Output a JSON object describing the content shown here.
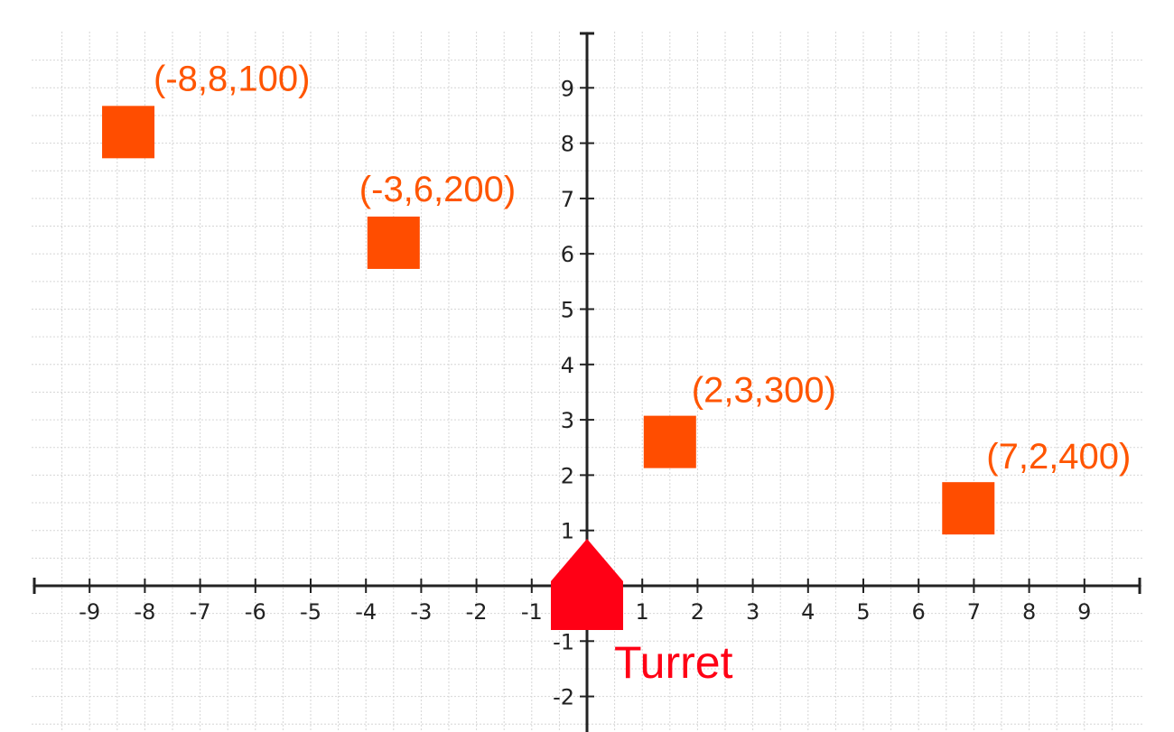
{
  "colors": {
    "target": "#ff4d00",
    "target_label": "#ff5500",
    "turret": "#ff0015",
    "grid": "#d6d6d6",
    "axis": "#222222",
    "background": "#ffffff"
  },
  "axes": {
    "x_ticks": [
      -9,
      -8,
      -7,
      -6,
      -5,
      -4,
      -3,
      -2,
      -1,
      1,
      2,
      3,
      4,
      5,
      6,
      7,
      8,
      9
    ],
    "y_ticks": [
      9,
      8,
      7,
      6,
      5,
      4,
      3,
      2,
      1,
      -1,
      -2
    ],
    "x_tick_labels": [
      "-9",
      "-8",
      "-7",
      "-6",
      "-5",
      "-4",
      "-3",
      "-2",
      "-1",
      "1",
      "2",
      "3",
      "4",
      "5",
      "6",
      "7",
      "8",
      "9"
    ],
    "y_tick_labels": [
      "9",
      "8",
      "7",
      "6",
      "5",
      "4",
      "3",
      "2",
      "1",
      "-1",
      "-2"
    ],
    "grid_step": 0.5,
    "grid": true
  },
  "targets": [
    {
      "label": "(-8,8,100)",
      "x": -8.3,
      "y": 8.2
    },
    {
      "label": "(-3,6,200)",
      "x": -3.5,
      "y": 6.2
    },
    {
      "label": "(2,3,300)",
      "x": 1.5,
      "y": 2.6
    },
    {
      "label": "(7,2,400)",
      "x": 6.9,
      "y": 1.4
    }
  ],
  "turret": {
    "label": "Turret",
    "x": 0,
    "y": 0
  }
}
